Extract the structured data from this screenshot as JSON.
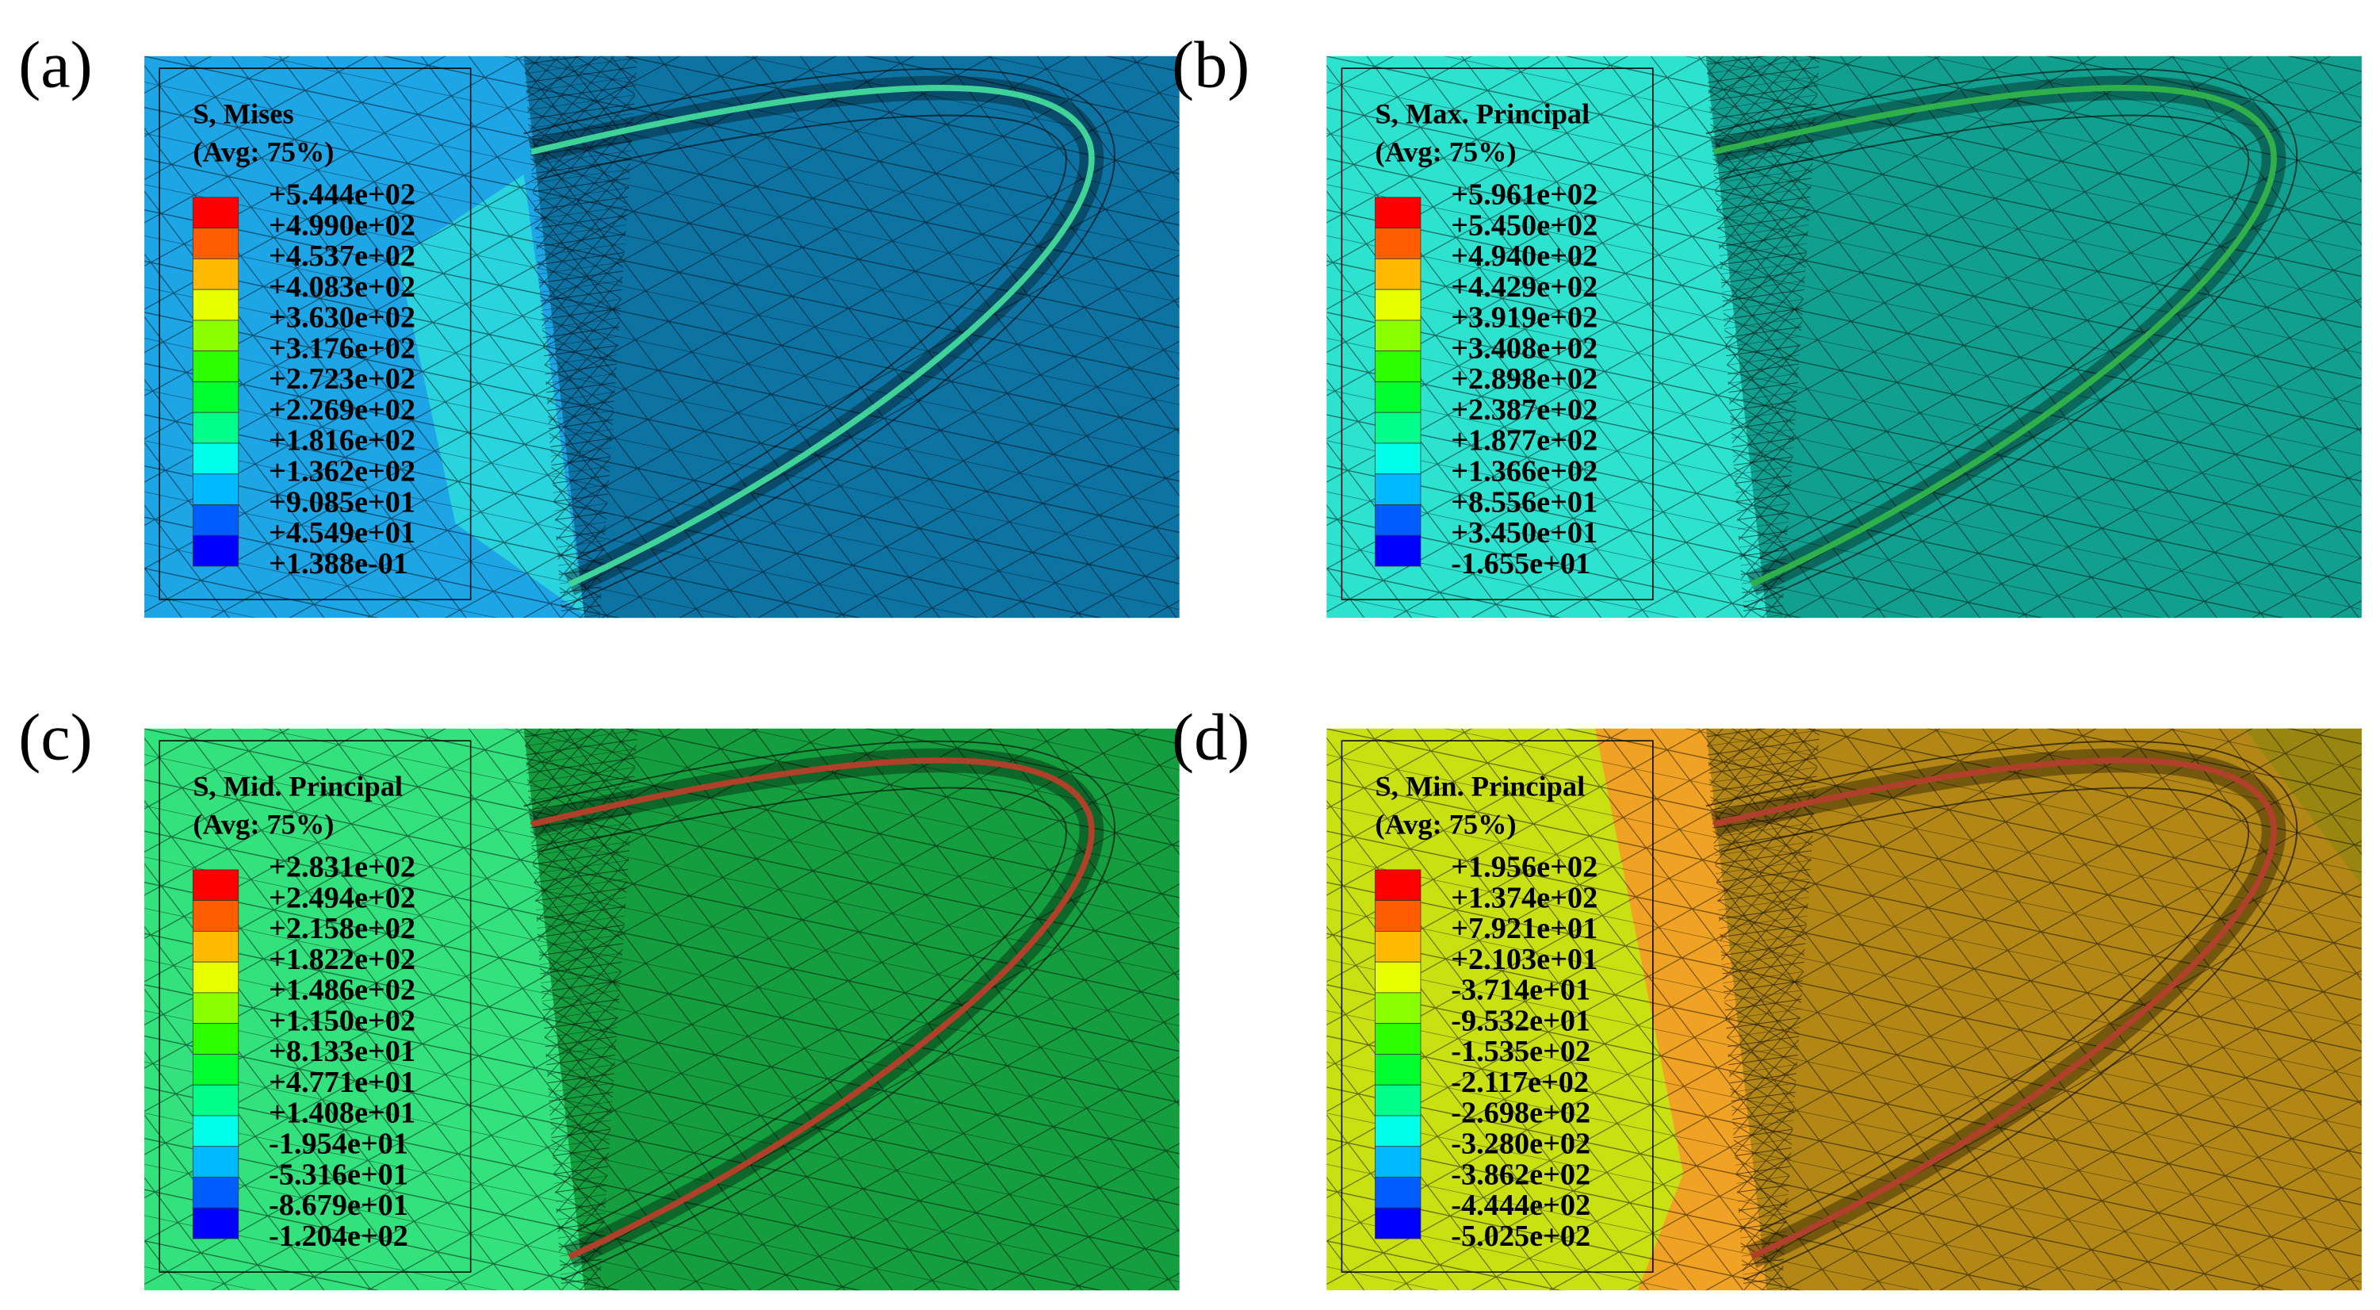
{
  "panels": [
    {
      "label": "(a)",
      "title": "S, Mises",
      "subtitle": "(Avg: 75%)",
      "levels": [
        "+5.444e+02",
        "+4.990e+02",
        "+4.537e+02",
        "+4.083e+02",
        "+3.630e+02",
        "+3.176e+02",
        "+2.723e+02",
        "+2.269e+02",
        "+1.816e+02",
        "+1.362e+02",
        "+9.085e+01",
        "+4.549e+01",
        "+1.388e-01"
      ]
    },
    {
      "label": "(b)",
      "title": "S, Max. Principal",
      "subtitle": "(Avg: 75%)",
      "levels": [
        "+5.961e+02",
        "+5.450e+02",
        "+4.940e+02",
        "+4.429e+02",
        "+3.919e+02",
        "+3.408e+02",
        "+2.898e+02",
        "+2.387e+02",
        "+1.877e+02",
        "+1.366e+02",
        "+8.556e+01",
        "+3.450e+01",
        "-1.655e+01"
      ]
    },
    {
      "label": "(c)",
      "title": "S, Mid. Principal",
      "subtitle": "(Avg: 75%)",
      "levels": [
        "+2.831e+02",
        "+2.494e+02",
        "+2.158e+02",
        "+1.822e+02",
        "+1.486e+02",
        "+1.150e+02",
        "+8.133e+01",
        "+4.771e+01",
        "+1.408e+01",
        "-1.954e+01",
        "-5.316e+01",
        "-8.679e+01",
        "-1.204e+02"
      ]
    },
    {
      "label": "(d)",
      "title": "S, Min. Principal",
      "subtitle": "(Avg: 75%)",
      "levels": [
        "+1.956e+02",
        "+1.374e+02",
        "+7.921e+01",
        "+2.103e+01",
        "-3.714e+01",
        "-9.532e+01",
        "-1.535e+02",
        "-2.117e+02",
        "-2.698e+02",
        "-3.280e+02",
        "-3.862e+02",
        "-4.444e+02",
        "-5.025e+02"
      ]
    }
  ]
}
